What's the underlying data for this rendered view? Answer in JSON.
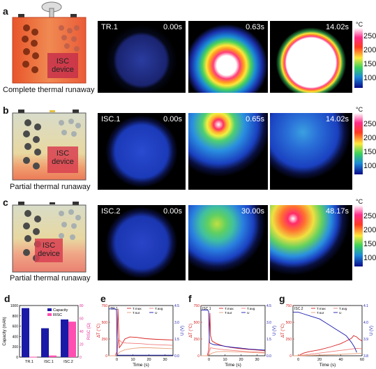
{
  "panels": {
    "a": {
      "letter": "a",
      "caption": "Complete  thermal runaway",
      "device_label_1": "ISC",
      "device_label_2": "device",
      "frames": [
        {
          "label": "TR.1",
          "time": "0.00s"
        },
        {
          "label": "",
          "time": "0.63s"
        },
        {
          "label": "",
          "time": "14.02s"
        }
      ],
      "colorbar_unit": "°C",
      "colorbar_ticks": [
        "250",
        "200",
        "150",
        "100"
      ]
    },
    "b": {
      "letter": "b",
      "caption": "Partial thermal runaway",
      "device_label_1": "ISC",
      "device_label_2": "device",
      "frames": [
        {
          "label": "ISC.1",
          "time": "0.00s"
        },
        {
          "label": "",
          "time": "0.65s"
        },
        {
          "label": "",
          "time": "14.02s"
        }
      ],
      "colorbar_unit": "°C",
      "colorbar_ticks": [
        "250",
        "200",
        "150",
        "100"
      ]
    },
    "c": {
      "letter": "c",
      "caption": "Partial thermal runaway",
      "device_label_1": "ISC",
      "device_label_2": "device",
      "frames": [
        {
          "label": "ISC.2",
          "time": "0.00s"
        },
        {
          "label": "",
          "time": "30.00s"
        },
        {
          "label": "",
          "time": "48.17s"
        }
      ],
      "colorbar_unit": "°C",
      "colorbar_ticks": [
        "250",
        "200",
        "150",
        "100"
      ]
    }
  },
  "chart_data": [
    {
      "panel": "d",
      "type": "bar",
      "categories": [
        "TR.1",
        "ISC.1",
        "ISC.2"
      ],
      "series": [
        {
          "name": "Capacity",
          "values": [
            950,
            560,
            730
          ],
          "color": "#1a1aa6",
          "axis": "left"
        },
        {
          "name": "R_ISC",
          "values": [
            0.5,
            2.5,
            55
          ],
          "color": "#ff4fb0",
          "axis": "right"
        }
      ],
      "ylabel": "Capacity (mAh)",
      "y2label": "RISC (Ω)",
      "ylim": [
        0,
        1000
      ],
      "y2lim": [
        0,
        80
      ],
      "yticks": [
        "0",
        "200",
        "400",
        "600",
        "800",
        "1000"
      ],
      "y2ticks": [
        "0",
        "20",
        "40",
        "60",
        "80"
      ],
      "legend_capacity": "Capacity",
      "legend_risc": "RISC"
    },
    {
      "panel": "e",
      "type": "line",
      "label": "TR.1",
      "xlabel": "Time (s)",
      "ylabel": "ΔT (°C)",
      "y2label": "U (V)",
      "xlim": [
        -5,
        35
      ],
      "ylim": [
        0,
        750
      ],
      "y2lim": [
        0,
        4.5
      ],
      "xticks": [
        "0",
        "10",
        "20",
        "30"
      ],
      "yticks": [
        "0",
        "250",
        "500",
        "750"
      ],
      "y2ticks": [
        "0.0",
        "1.5",
        "3.0",
        "4.5"
      ],
      "legend": [
        "T.max",
        "T.avg",
        "T.sur",
        "U"
      ],
      "series": [
        {
          "name": "T.max",
          "color": "#d92020",
          "x": [
            -5,
            -1,
            0,
            0.7,
            1.5,
            3,
            5,
            8,
            12,
            18,
            25,
            30,
            35
          ],
          "y": [
            0,
            0,
            60,
            700,
            120,
            170,
            250,
            280,
            275,
            255,
            245,
            240,
            235
          ]
        },
        {
          "name": "T.avg",
          "color": "#f07b7b",
          "x": [
            -5,
            -1,
            0,
            1,
            3,
            6,
            10,
            15,
            20,
            25,
            30,
            35
          ],
          "y": [
            0,
            0,
            40,
            250,
            200,
            190,
            185,
            180,
            170,
            165,
            160,
            155
          ]
        },
        {
          "name": "T.sur",
          "color": "#e8a07a",
          "x": [
            -5,
            -1,
            0,
            2,
            5,
            10,
            15,
            20,
            25,
            30,
            35
          ],
          "y": [
            0,
            0,
            10,
            60,
            90,
            110,
            120,
            120,
            115,
            110,
            105
          ]
        },
        {
          "name": "U",
          "color": "#1a1ab0",
          "axis": "right",
          "x": [
            -5,
            -1,
            -0.2,
            0.2,
            35
          ],
          "y": [
            4.2,
            4.2,
            4.1,
            0.05,
            0.05
          ]
        }
      ]
    },
    {
      "panel": "f",
      "type": "line",
      "label": "ISC.1",
      "xlabel": "Time (s)",
      "ylabel": "ΔT (°C)",
      "y2label": "U (V)",
      "xlim": [
        -5,
        35
      ],
      "ylim": [
        0,
        750
      ],
      "y2lim": [
        0,
        4.5
      ],
      "xticks": [
        "0",
        "10",
        "20",
        "30"
      ],
      "yticks": [
        "0",
        "250",
        "500",
        "750"
      ],
      "y2ticks": [
        "0.0",
        "1.5",
        "3.0",
        "4.5"
      ],
      "legend": [
        "T.max",
        "T.avg",
        "T.sur",
        "U"
      ],
      "series": [
        {
          "name": "T.max",
          "color": "#d92020",
          "x": [
            -5,
            -1,
            0,
            0.6,
            1,
            2,
            4,
            7,
            10,
            15,
            20,
            25,
            30,
            35
          ],
          "y": [
            0,
            0,
            100,
            640,
            300,
            220,
            190,
            160,
            140,
            120,
            105,
            95,
            85,
            75
          ]
        },
        {
          "name": "T.avg",
          "color": "#f07b7b",
          "x": [
            -5,
            -1,
            0,
            1,
            3,
            6,
            10,
            15,
            20,
            25,
            30,
            35
          ],
          "y": [
            0,
            0,
            30,
            120,
            110,
            100,
            90,
            80,
            70,
            60,
            55,
            50
          ]
        },
        {
          "name": "T.sur",
          "color": "#e8a07a",
          "x": [
            -5,
            -1,
            0,
            2,
            5,
            10,
            15,
            20,
            25,
            30,
            35
          ],
          "y": [
            0,
            0,
            10,
            40,
            60,
            65,
            60,
            55,
            50,
            45,
            40
          ]
        },
        {
          "name": "U",
          "color": "#1a1ab0",
          "axis": "right",
          "x": [
            -5,
            -1,
            -0.2,
            0.3,
            1,
            3,
            6,
            10,
            15,
            20,
            25,
            30,
            35
          ],
          "y": [
            4.1,
            4.1,
            4.0,
            1.2,
            1.1,
            1.0,
            0.95,
            0.85,
            0.75,
            0.68,
            0.6,
            0.55,
            0.5
          ]
        }
      ]
    },
    {
      "panel": "g",
      "type": "line",
      "label": "ISC.2",
      "xlabel": "Time (s)",
      "ylabel": "ΔT (°C)",
      "y2label": "U (V)",
      "xlim": [
        -5,
        60
      ],
      "ylim": [
        0,
        750
      ],
      "y2lim": [
        3.8,
        4.1
      ],
      "xticks": [
        "0",
        "20",
        "40",
        "60"
      ],
      "yticks": [
        "0",
        "250",
        "500",
        "750"
      ],
      "y2ticks": [
        "3.8",
        "3.9",
        "4.0",
        "4.1"
      ],
      "legend": [
        "T.max",
        "T.avg",
        "T.sur",
        "U"
      ],
      "series": [
        {
          "name": "T.max",
          "color": "#d92020",
          "x": [
            -5,
            0,
            5,
            10,
            20,
            30,
            40,
            45,
            50,
            52,
            55,
            57,
            60
          ],
          "y": [
            0,
            0,
            40,
            60,
            90,
            130,
            180,
            220,
            260,
            300,
            280,
            250,
            220
          ]
        },
        {
          "name": "T.avg",
          "color": "#f07b7b",
          "x": [
            -5,
            0,
            10,
            20,
            30,
            40,
            50,
            55,
            60
          ],
          "y": [
            0,
            0,
            20,
            40,
            60,
            80,
            100,
            110,
            105
          ]
        },
        {
          "name": "T.sur",
          "color": "#e8a07a",
          "x": [
            -5,
            0,
            10,
            20,
            30,
            40,
            50,
            60
          ],
          "y": [
            0,
            0,
            5,
            10,
            15,
            22,
            30,
            35
          ]
        },
        {
          "name": "U",
          "color": "#1a1ab0",
          "axis": "right",
          "x": [
            -5,
            0,
            5,
            10,
            15,
            20,
            25,
            30,
            35,
            40,
            45,
            50,
            53,
            55
          ],
          "y": [
            4.06,
            4.06,
            4.05,
            4.04,
            4.03,
            4.02,
            4.0,
            3.98,
            3.96,
            3.94,
            3.92,
            3.88,
            3.85,
            3.82
          ]
        }
      ]
    }
  ]
}
